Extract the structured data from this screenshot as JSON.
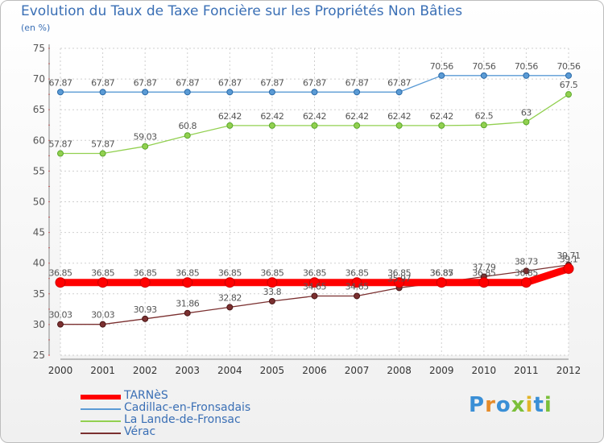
{
  "chart_data": {
    "type": "line",
    "title": "Evolution du Taux de Taxe Foncière sur les Propriétés Non Bâties",
    "ylabel": "(en %)",
    "xlabel": "",
    "ylim": [
      25,
      75
    ],
    "yticks": [
      "25",
      "30",
      "35",
      "40",
      "45",
      "50",
      "55",
      "60",
      "65",
      "70",
      "75"
    ],
    "categories": [
      "2000",
      "2001",
      "2002",
      "2003",
      "2004",
      "2005",
      "2006",
      "2007",
      "2008",
      "2009",
      "2010",
      "2011",
      "2012"
    ],
    "series": [
      {
        "name": "TARNèS",
        "color": "#ff0000",
        "values": [
          36.85,
          36.85,
          36.85,
          36.85,
          36.85,
          36.85,
          36.85,
          36.85,
          36.85,
          36.85,
          36.85,
          36.85,
          39.1
        ],
        "labels": [
          "36.85",
          "36.85",
          "36.85",
          "36.85",
          "36.85",
          "36.85",
          "36.85",
          "36.85",
          "36.85",
          "36.85",
          "36.85",
          "36.85",
          "39.1"
        ]
      },
      {
        "name": "Cadillac-en-Fronsadais",
        "color": "#5b9bd5",
        "values": [
          67.87,
          67.87,
          67.87,
          67.87,
          67.87,
          67.87,
          67.87,
          67.87,
          67.87,
          70.56,
          70.56,
          70.56,
          70.56
        ],
        "labels": [
          "67.87",
          "67.87",
          "67.87",
          "67.87",
          "67.87",
          "67.87",
          "67.87",
          "67.87",
          "67.87",
          "70.56",
          "70.56",
          "70.56",
          "70.56"
        ]
      },
      {
        "name": "La Lande-de-Fronsac",
        "color": "#92d050",
        "values": [
          57.87,
          57.87,
          59.03,
          60.8,
          62.42,
          62.42,
          62.42,
          62.42,
          62.42,
          62.42,
          62.5,
          63,
          67.5
        ],
        "labels": [
          "57.87",
          "57.87",
          "59.03",
          "60.8",
          "62.42",
          "62.42",
          "62.42",
          "62.42",
          "62.42",
          "62.42",
          "62.5",
          "63",
          "67.5"
        ]
      },
      {
        "name": "Vérac",
        "color": "#7b3030",
        "values": [
          30.03,
          30.03,
          30.93,
          31.86,
          32.82,
          33.8,
          34.65,
          34.65,
          35.97,
          36.87,
          37.79,
          38.73,
          39.71
        ],
        "labels": [
          "30.03",
          "30.03",
          "30.93",
          "31.86",
          "32.82",
          "33.8",
          "34.65",
          "34.65",
          "35.97",
          "36.87",
          "37.79",
          "38.73",
          "39.71"
        ]
      }
    ]
  },
  "legend": {
    "items": [
      {
        "label": "TARNèS",
        "color": "#ff0000"
      },
      {
        "label": "Cadillac-en-Fronsadais",
        "color": "#5b9bd5"
      },
      {
        "label": "La Lande-de-Fronsac",
        "color": "#92d050"
      },
      {
        "label": "Vérac",
        "color": "#7b3030"
      }
    ]
  },
  "logo": {
    "letters": [
      {
        "char": "P",
        "color": "#3a8fd6"
      },
      {
        "char": "r",
        "color": "#e58b2a"
      },
      {
        "char": "o",
        "color": "#3a8fd6"
      },
      {
        "char": "x",
        "color": "#7bbf3a"
      },
      {
        "char": "i",
        "color": "#e2b52a"
      },
      {
        "char": "t",
        "color": "#3a8fd6"
      },
      {
        "char": "i",
        "color": "#7bbf3a"
      }
    ]
  }
}
